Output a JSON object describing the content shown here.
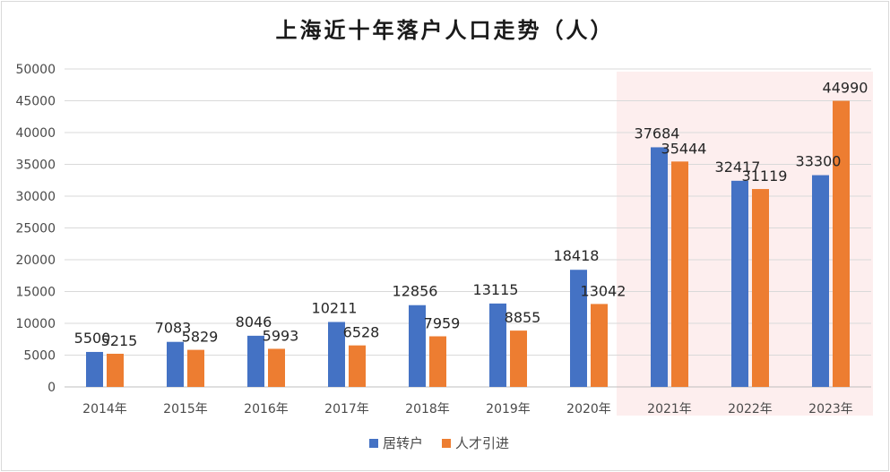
{
  "chart_data": {
    "type": "bar",
    "title": "上海近十年落户人口走势（人）",
    "categories": [
      "2014年",
      "2015年",
      "2016年",
      "2017年",
      "2018年",
      "2019年",
      "2020年",
      "2021年",
      "2022年",
      "2023年"
    ],
    "series": [
      {
        "name": "居转户",
        "color": "#4472c4",
        "values": [
          5500,
          7083,
          8046,
          10211,
          12856,
          13115,
          18418,
          37684,
          32417,
          33300
        ]
      },
      {
        "name": "人才引进",
        "color": "#ed7d31",
        "values": [
          5215,
          5829,
          5993,
          6528,
          7959,
          8855,
          13042,
          35444,
          31119,
          44990
        ]
      }
    ],
    "ylim": [
      0,
      50000
    ],
    "yticks": [
      0,
      5000,
      10000,
      15000,
      20000,
      25000,
      30000,
      35000,
      40000,
      45000,
      50000
    ],
    "grid": true,
    "legend": "bottom",
    "highlight": {
      "from_category": "2021年",
      "to_category": "2023年",
      "color": "#fdeeee"
    }
  }
}
